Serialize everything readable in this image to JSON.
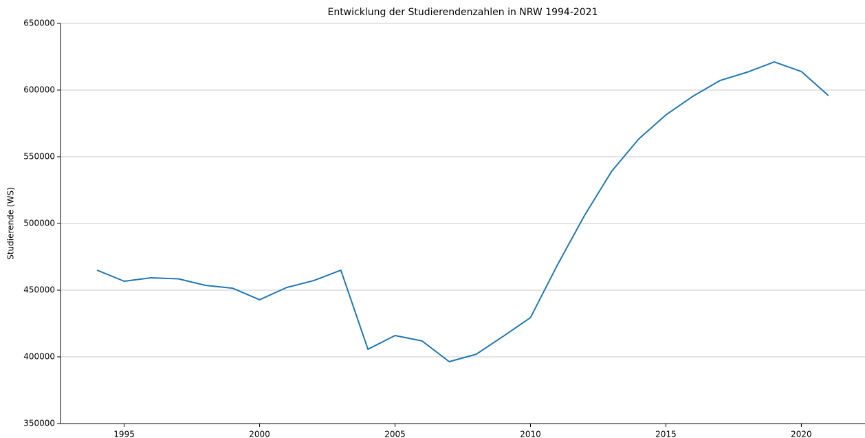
{
  "chart_data": {
    "type": "line",
    "title": "Entwicklung der Studierendenzahlen in NRW 1994-2021",
    "y_label": "Studierende (WS)",
    "x": [
      1994,
      1995,
      1996,
      1997,
      1998,
      1999,
      2000,
      2001,
      2002,
      2003,
      2004,
      2005,
      2006,
      2007,
      2008,
      2009,
      2010,
      2011,
      2012,
      2013,
      2014,
      2015,
      2016,
      2017,
      2018,
      2019,
      2020,
      2021
    ],
    "series": [
      {
        "name": "Studierende",
        "color": "#1f77b4",
        "values": [
          465000,
          456700,
          459300,
          458500,
          453600,
          451500,
          442800,
          452000,
          457200,
          465000,
          405700,
          416000,
          411900,
          396400,
          402000,
          415500,
          429400,
          469100,
          506200,
          539200,
          563400,
          581400,
          595400,
          607200,
          613400,
          621100,
          613900,
          595900
        ]
      }
    ],
    "xlim": [
      1992.65,
      2022.35
    ],
    "xticks": [
      1995,
      2000,
      2005,
      2010,
      2015,
      2020
    ],
    "ylim": [
      350000,
      650000
    ],
    "yticks": [
      350000,
      400000,
      450000,
      500000,
      550000,
      600000,
      650000
    ],
    "grid": true
  }
}
